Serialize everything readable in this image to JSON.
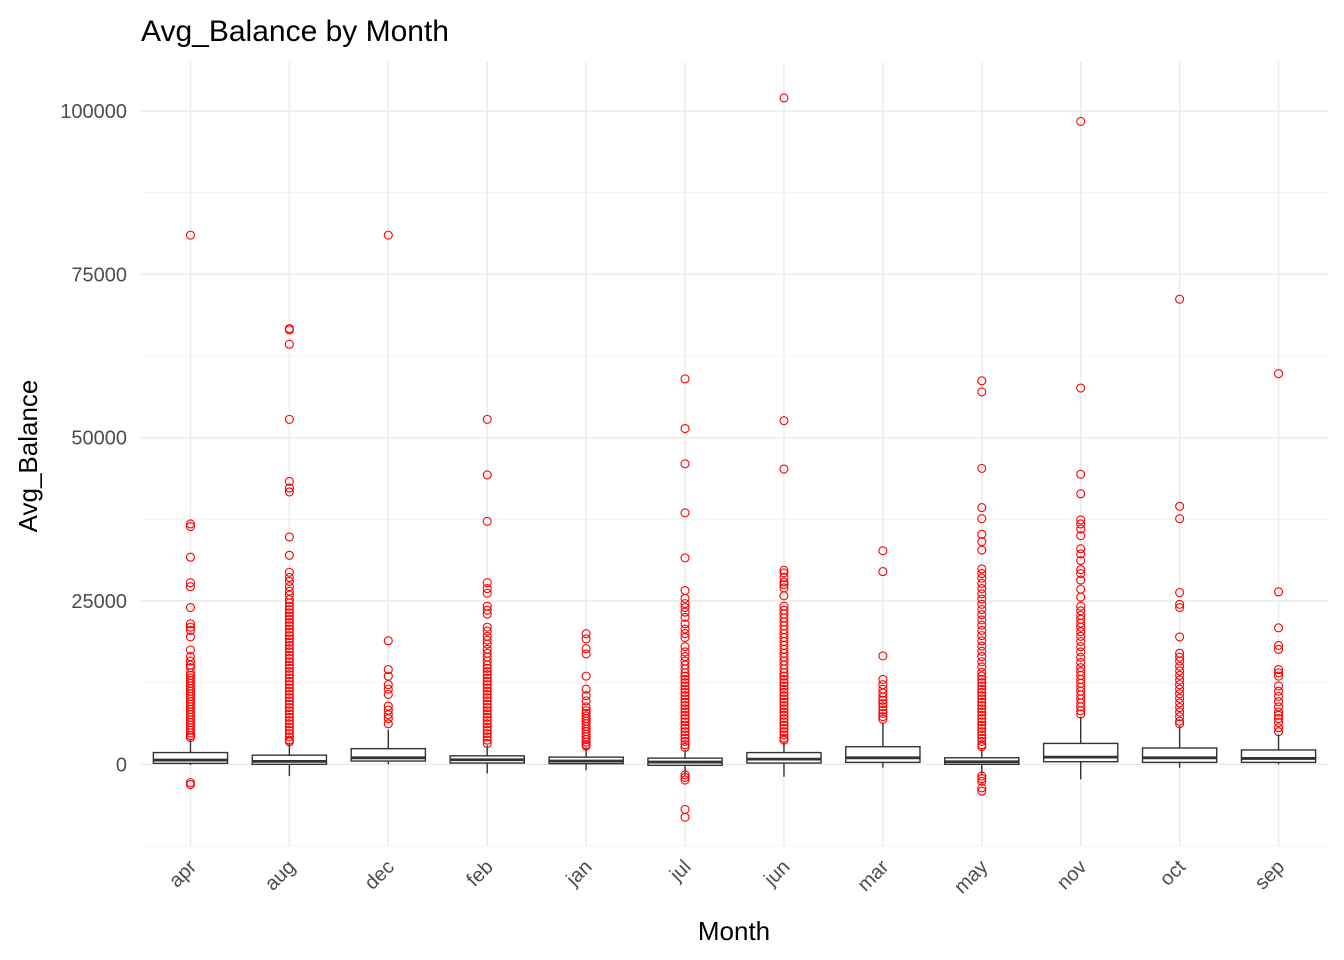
{
  "chart_data": {
    "type": "boxplot",
    "title": "Avg_Balance by Month",
    "xlabel": "Month",
    "ylabel": "Avg_Balance",
    "ylim": [
      -12500,
      107500
    ],
    "y_ticks": [
      0,
      25000,
      50000,
      75000,
      100000
    ],
    "y_tick_labels": [
      "0",
      "25000",
      "50000",
      "75000",
      "100000"
    ],
    "grid": true,
    "legend": "none",
    "outlier_color": "#ff0000",
    "box_outline_color": "#333333",
    "categories": [
      "apr",
      "aug",
      "dec",
      "feb",
      "jan",
      "jul",
      "jun",
      "mar",
      "may",
      "nov",
      "oct",
      "sep"
    ],
    "boxes": [
      {
        "category": "apr",
        "whisker_low": -100,
        "q1": 150,
        "median": 650,
        "q3": 1800,
        "whisker_high": 3900,
        "outliers": [
          81000,
          36800,
          36400,
          31700,
          27800,
          27200,
          24000,
          21500,
          21000,
          20500,
          19500,
          17500,
          16500,
          15800,
          15200,
          14800,
          14000,
          13600,
          13200,
          12800,
          12400,
          12000,
          11600,
          11200,
          10800,
          10400,
          10000,
          9600,
          9200,
          8800,
          8400,
          8000,
          7600,
          7200,
          6800,
          6400,
          6000,
          5600,
          5200,
          4800,
          4400,
          4100,
          -2800,
          -3100
        ]
      },
      {
        "category": "aug",
        "whisker_low": -1800,
        "q1": 0,
        "median": 450,
        "q3": 1400,
        "whisker_high": 3300,
        "outliers": [
          66700,
          66500,
          64300,
          52800,
          43300,
          42300,
          41700,
          34800,
          32000,
          29400,
          28600,
          28000,
          27200,
          26500,
          25900,
          25200,
          24700,
          24200,
          23700,
          23200,
          22700,
          22200,
          21700,
          21200,
          20700,
          20200,
          19700,
          19200,
          18700,
          18200,
          17700,
          17200,
          16700,
          16200,
          15700,
          15200,
          14700,
          14200,
          13700,
          13200,
          12700,
          12200,
          11700,
          11200,
          10700,
          10200,
          9700,
          9200,
          8700,
          8200,
          7700,
          7200,
          6700,
          6200,
          5700,
          5200,
          4700,
          4200,
          3700,
          3450
        ]
      },
      {
        "category": "dec",
        "whisker_low": 0,
        "q1": 500,
        "median": 1000,
        "q3": 2400,
        "whisker_high": 5300,
        "outliers": [
          81000,
          18900,
          14500,
          13500,
          12200,
          11500,
          10700,
          8900,
          8300,
          7600,
          7000,
          6200
        ]
      },
      {
        "category": "feb",
        "whisker_low": -1400,
        "q1": 200,
        "median": 700,
        "q3": 1300,
        "whisker_high": 2900,
        "outliers": [
          52800,
          44300,
          37200,
          27800,
          26900,
          26200,
          24200,
          23600,
          23000,
          21000,
          20400,
          19600,
          19000,
          18400,
          17600,
          17000,
          16400,
          15800,
          15200,
          14700,
          14200,
          13700,
          13200,
          12700,
          12200,
          11700,
          11200,
          10700,
          10200,
          9700,
          9200,
          8700,
          8200,
          7700,
          7200,
          6700,
          6200,
          5700,
          5200,
          4700,
          4200,
          3700,
          3200
        ]
      },
      {
        "category": "jan",
        "whisker_low": -900,
        "q1": 100,
        "median": 500,
        "q3": 1100,
        "whisker_high": 2600,
        "outliers": [
          20000,
          19200,
          17700,
          16900,
          13500,
          11500,
          10500,
          9700,
          8800,
          8200,
          7800,
          7400,
          7000,
          6600,
          6200,
          5800,
          5400,
          5000,
          4600,
          4200,
          3800,
          3400,
          3000,
          2800
        ]
      },
      {
        "category": "jul",
        "whisker_low": -1700,
        "q1": -150,
        "median": 350,
        "q3": 950,
        "whisker_high": 2200,
        "outliers": [
          59000,
          51400,
          46000,
          38500,
          31600,
          26600,
          25400,
          24600,
          24000,
          23300,
          22500,
          21500,
          20700,
          20000,
          19400,
          18000,
          17200,
          16500,
          15800,
          15200,
          14600,
          14000,
          13500,
          13000,
          12500,
          12000,
          11500,
          11000,
          10500,
          10000,
          9500,
          9000,
          8500,
          8000,
          7500,
          7000,
          6500,
          6000,
          5500,
          5000,
          4500,
          4000,
          3500,
          3000,
          2600,
          -1600,
          -2000,
          -2400,
          -6900,
          -8100
        ]
      },
      {
        "category": "jun",
        "whisker_low": -1900,
        "q1": 200,
        "median": 800,
        "q3": 1800,
        "whisker_high": 3500,
        "outliers": [
          102000,
          52600,
          45200,
          29700,
          29300,
          28600,
          27900,
          27500,
          27000,
          25800,
          24200,
          23600,
          23000,
          22400,
          21800,
          21200,
          20600,
          20000,
          19400,
          18800,
          18200,
          17600,
          17000,
          16400,
          15800,
          15200,
          14600,
          14000,
          13500,
          13000,
          12500,
          12000,
          11500,
          11000,
          10500,
          10000,
          9500,
          9000,
          8500,
          8000,
          7500,
          7000,
          6500,
          6000,
          5500,
          5000,
          4500,
          4000,
          3700
        ]
      },
      {
        "category": "mar",
        "whisker_low": -500,
        "q1": 300,
        "median": 1000,
        "q3": 2700,
        "whisker_high": 6300,
        "outliers": [
          32700,
          29500,
          16600,
          13000,
          12200,
          11500,
          10900,
          10300,
          9800,
          9300,
          8800,
          8300,
          7800,
          7300,
          6900
        ]
      },
      {
        "category": "may",
        "whisker_low": -1700,
        "q1": 0,
        "median": 400,
        "q3": 1000,
        "whisker_high": 2500,
        "outliers": [
          58700,
          57000,
          45300,
          39300,
          37600,
          35200,
          34100,
          32800,
          29900,
          29200,
          28500,
          27700,
          26900,
          26100,
          25300,
          24500,
          23700,
          22900,
          22100,
          21300,
          20500,
          19700,
          18900,
          18100,
          17300,
          16500,
          15700,
          14900,
          14100,
          13500,
          13000,
          12500,
          12000,
          11500,
          11000,
          10500,
          10000,
          9500,
          9000,
          8500,
          8000,
          7500,
          7000,
          6500,
          6000,
          5500,
          5000,
          4500,
          4000,
          3500,
          3000,
          2700,
          -1800,
          -2200,
          -2600,
          -3600,
          -4100
        ]
      },
      {
        "category": "nov",
        "whisker_low": -2300,
        "q1": 400,
        "median": 1100,
        "q3": 3200,
        "whisker_high": 7300,
        "outliers": [
          98400,
          57600,
          44400,
          41400,
          37400,
          36800,
          36000,
          35000,
          33000,
          32200,
          31200,
          29800,
          29200,
          28200,
          26800,
          25600,
          24200,
          23500,
          22800,
          22200,
          21600,
          21000,
          20300,
          19600,
          18800,
          18000,
          17200,
          16400,
          15600,
          14800,
          14200,
          13600,
          13000,
          12400,
          11800,
          11200,
          10600,
          10000,
          9400,
          8800,
          8200,
          7700
        ]
      },
      {
        "category": "oct",
        "whisker_low": -500,
        "q1": 300,
        "median": 1000,
        "q3": 2500,
        "whisker_high": 5900,
        "outliers": [
          71200,
          39500,
          37600,
          26300,
          24500,
          24000,
          19500,
          17000,
          16400,
          15800,
          15000,
          14300,
          13600,
          12900,
          12200,
          11500,
          10800,
          10100,
          9400,
          8700,
          8000,
          7300,
          6600,
          6200
        ]
      },
      {
        "category": "sep",
        "whisker_low": 0,
        "q1": 300,
        "median": 900,
        "q3": 2200,
        "whisker_high": 4600,
        "outliers": [
          59800,
          26400,
          20900,
          18200,
          17600,
          14500,
          14000,
          13500,
          12000,
          11200,
          10400,
          9600,
          8800,
          8000,
          7500,
          7000,
          6400,
          5600,
          5000
        ]
      }
    ]
  }
}
